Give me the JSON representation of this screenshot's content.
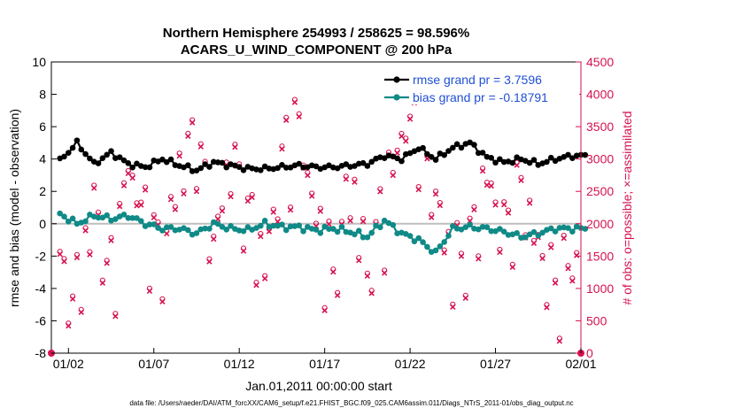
{
  "chart_data": {
    "type": "line",
    "title": [
      "Northern Hemisphere 254993 / 258625 = 98.596%",
      "ACARS_U_WIND_COMPONENT @ 200 hPa"
    ],
    "xlabel": "Jan.01,2011 00:00:00 start",
    "ylabel": "rmse and bias (model - observation)",
    "y2label": "# of obs: o=possible; ×=assimilated",
    "xlim": [
      0.5,
      31.5
    ],
    "ylim": [
      -8,
      10
    ],
    "y2lim": [
      0,
      4500
    ],
    "x_ticks": [
      {
        "day": 1.5,
        "label": "01/02"
      },
      {
        "day": 6.5,
        "label": "01/07"
      },
      {
        "day": 11.5,
        "label": "01/12"
      },
      {
        "day": 16.5,
        "label": "01/17"
      },
      {
        "day": 21.5,
        "label": "01/22"
      },
      {
        "day": 26.5,
        "label": "01/27"
      },
      {
        "day": 31.5,
        "label": "02/01"
      }
    ],
    "y_ticks": [
      "-8",
      "-6",
      "-4",
      "-2",
      "0",
      "2",
      "4",
      "6",
      "8",
      "10"
    ],
    "y2_ticks": [
      "0",
      "500",
      "1000",
      "1500",
      "2000",
      "2500",
      "3000",
      "3500",
      "4000",
      "4500"
    ],
    "legend": [
      "rmse grand pr = 3.7596",
      "bias grand pr = -0.18791"
    ],
    "series_rmse_day": [
      3.9,
      5.0,
      3.7,
      4.4,
      3.7,
      3.5,
      4.0,
      3.6,
      3.3,
      3.8,
      3.6,
      3.4,
      3.4,
      3.5,
      3.6,
      3.5,
      3.5,
      3.6,
      3.7,
      4.2,
      4.0,
      4.7,
      4.0,
      4.7,
      5.0,
      4.1,
      3.8,
      4.0,
      3.7,
      4.0,
      4.2
    ],
    "series_bias_day": [
      0.6,
      0.0,
      0.5,
      0.3,
      0.5,
      0.0,
      -0.3,
      -0.3,
      -0.6,
      0.0,
      -0.3,
      -0.4,
      0.0,
      -0.2,
      -0.2,
      -0.4,
      -0.3,
      -0.5,
      -0.8,
      0.2,
      -0.6,
      -1.0,
      -1.8,
      -0.3,
      -0.2,
      -0.3,
      -0.5,
      -0.8,
      -0.6,
      -0.3,
      -0.3
    ],
    "series_obs_day": [
      1100,
      850,
      2250,
      1000,
      2900,
      2000,
      1400,
      2800,
      3300,
      1600,
      3000,
      2100,
      1300,
      2900,
      3500,
      2000,
      1100,
      2600,
      1200,
      2200,
      3400,
      3500,
      2300,
      1300,
      1600,
      2700,
      1800,
      2500,
      1600,
      900,
      1400
    ],
    "footnote": "data file: /Users/raeder/DAI/ATM_forcXX/CAM6_setup/f.e21.FHIST_BGC.f09_025.CAM6assim.011/Diags_NTrS_2011-01/obs_diag_output.nc",
    "colors": {
      "rmse": "#000000",
      "bias": "#0f8a87",
      "obs": "#d6124f",
      "legend_text": "#1f4fd6",
      "zero_line": "#bfbfbf"
    }
  }
}
